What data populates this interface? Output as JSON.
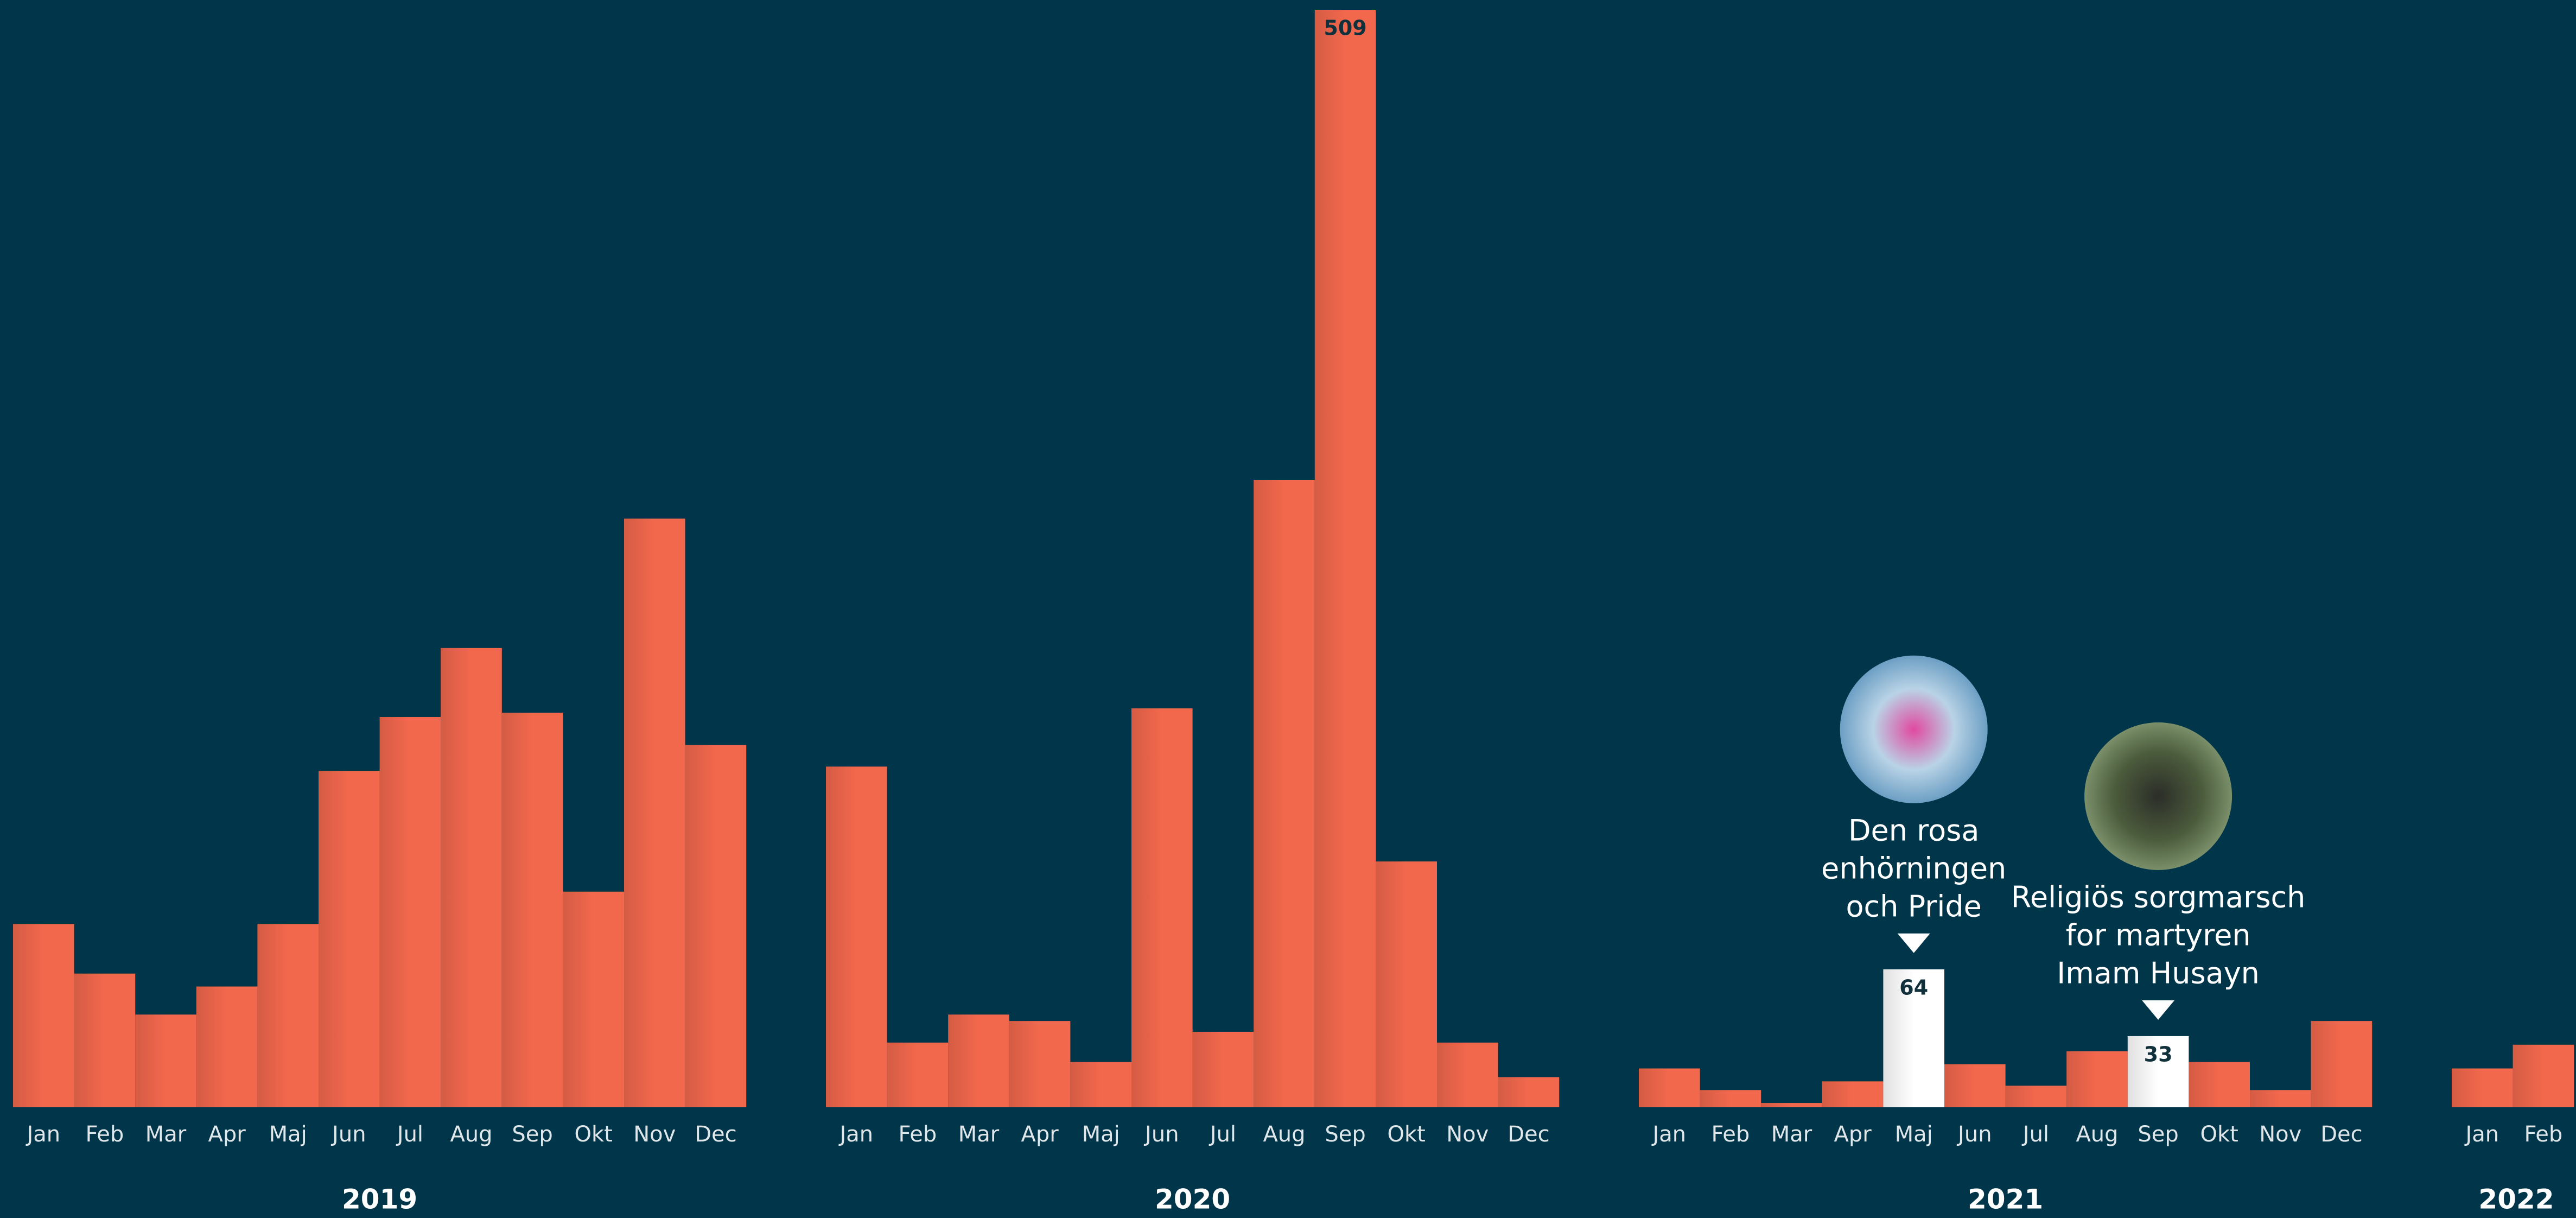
{
  "chart_data": {
    "type": "bar",
    "bar_color": "#f2684d",
    "highlight_color": "#ffffff",
    "background": "#01364a",
    "groups": [
      {
        "year": "2019",
        "categories": [
          "Jan",
          "Feb",
          "Mar",
          "Apr",
          "Maj",
          "Jun",
          "Jul",
          "Aug",
          "Sep",
          "Okt",
          "Nov",
          "Dec"
        ],
        "values": [
          85,
          62,
          43,
          56,
          85,
          156,
          181,
          213,
          183,
          100,
          273,
          168
        ]
      },
      {
        "year": "2020",
        "categories": [
          "Jan",
          "Feb",
          "Mar",
          "Apr",
          "Maj",
          "Jun",
          "Jul",
          "Aug",
          "Sep",
          "Okt",
          "Nov",
          "Dec"
        ],
        "values": [
          158,
          30,
          43,
          40,
          21,
          185,
          35,
          291,
          509,
          114,
          30,
          14
        ],
        "labeled_categories": [
          "Sep"
        ]
      },
      {
        "year": "2021",
        "categories": [
          "Jan",
          "Feb",
          "Mar",
          "Apr",
          "Maj",
          "Jun",
          "Jul",
          "Aug",
          "Sep",
          "Okt",
          "Nov",
          "Dec"
        ],
        "values": [
          18,
          8,
          2,
          12,
          64,
          20,
          10,
          26,
          33,
          21,
          8,
          40
        ],
        "labeled_categories": [
          "Maj",
          "Sep"
        ],
        "annotations": [
          {
            "category": "Maj",
            "lines": [
              "Den rosa",
              "enhörningen",
              "och Pride"
            ]
          },
          {
            "category": "Sep",
            "lines": [
              "Religiös sorgmarsch",
              "for martyren",
              "Imam Husayn"
            ]
          }
        ]
      },
      {
        "year": "2022",
        "categories": [
          "Jan",
          "Feb"
        ],
        "values": [
          18,
          29
        ]
      }
    ]
  }
}
